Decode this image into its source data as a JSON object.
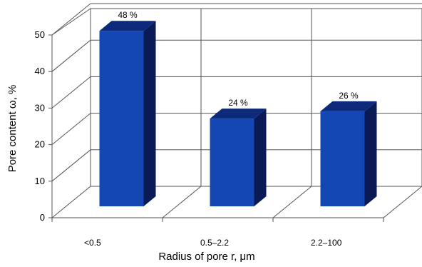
{
  "chart_data": {
    "type": "bar",
    "categories": [
      "<0.5",
      "0.5–2.2",
      "2.2–100"
    ],
    "values": [
      48,
      24,
      26
    ],
    "data_labels": [
      "48 %",
      "24 %",
      "26 %"
    ],
    "xlabel": "Radius of pore r,   μm",
    "ylabel": "Pore content ω, %",
    "ylim": [
      0,
      50
    ],
    "yticks": [
      0,
      10,
      20,
      30,
      40,
      50
    ],
    "grid": true,
    "three_d": true,
    "colors": {
      "bar_front": "#1446b4",
      "bar_side": "#0a1a55",
      "bar_top": "#0d2a7a",
      "grid": "#555555"
    }
  }
}
